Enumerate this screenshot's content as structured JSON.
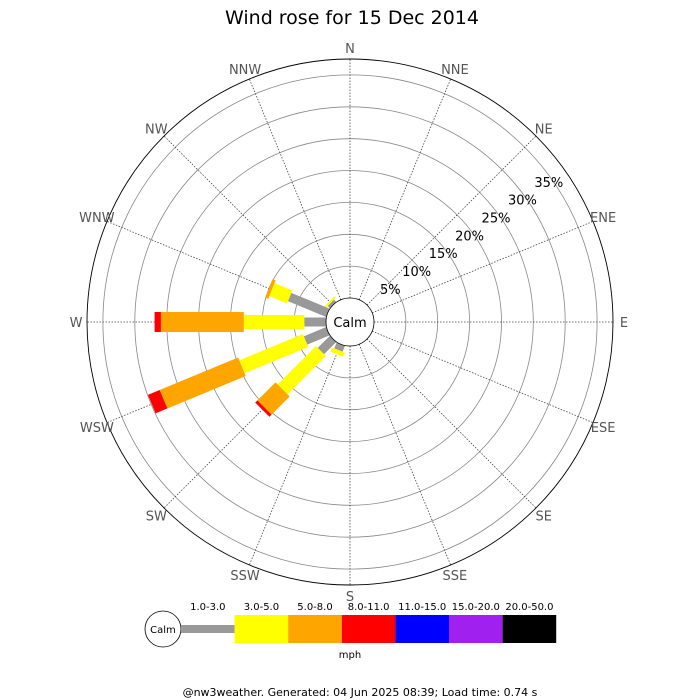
{
  "chart_data": {
    "type": "wind-rose",
    "title": "Wind rose for 15 Dec 2014",
    "directions": [
      "N",
      "NNE",
      "NE",
      "ENE",
      "E",
      "ESE",
      "SE",
      "SSE",
      "S",
      "SSW",
      "SW",
      "WSW",
      "W",
      "WNW",
      "NW",
      "NNW"
    ],
    "ring_labels": [
      "5%",
      "10%",
      "15%",
      "20%",
      "25%",
      "30%",
      "35%"
    ],
    "ring_values": [
      5,
      10,
      15,
      20,
      25,
      30,
      35
    ],
    "max_percent": 37.5,
    "calm_label": "Calm",
    "speed_bins": [
      {
        "label": "1.0-3.0",
        "color": "#999999"
      },
      {
        "label": "3.0-5.0",
        "color": "#ffff00"
      },
      {
        "label": "5.0-8.0",
        "color": "#ffa500"
      },
      {
        "label": "8.0-11.0",
        "color": "#ff0000"
      },
      {
        "label": "11.0-15.0",
        "color": "#0000ff"
      },
      {
        "label": "15.0-20.0",
        "color": "#a020f0"
      },
      {
        "label": "20.0-50.0",
        "color": "#000000"
      }
    ],
    "unit_label": "mph",
    "series": [
      {
        "direction": "NW",
        "values": [
          0.5,
          0.3,
          0,
          0,
          0,
          0,
          0
        ]
      },
      {
        "direction": "WNW",
        "values": [
          6.5,
          3.0,
          0.5,
          0,
          0,
          0,
          0
        ]
      },
      {
        "direction": "W",
        "values": [
          3.4,
          9.5,
          13.0,
          1.0,
          0,
          0,
          0
        ]
      },
      {
        "direction": "WSW",
        "values": [
          3.8,
          10.8,
          13.3,
          2.0,
          0,
          0,
          0
        ]
      },
      {
        "direction": "SW",
        "values": [
          2.7,
          8.5,
          4.0,
          0.5,
          0,
          0,
          0
        ]
      },
      {
        "direction": "SSW",
        "values": [
          1.0,
          0.7,
          0,
          0,
          0,
          0,
          0
        ]
      }
    ]
  },
  "footer": "@nw3weather. Generated: 04 Jun 2025 08:39; Load time: 0.74 s"
}
